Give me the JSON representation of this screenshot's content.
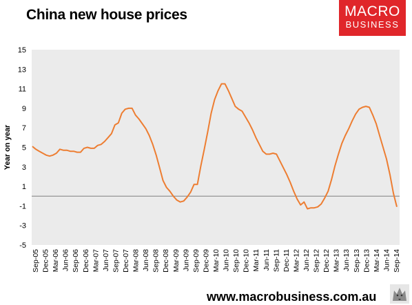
{
  "header": {
    "title": "China new house prices",
    "logo_line1": "MACRO",
    "logo_line2": "BUSINESS"
  },
  "footer": {
    "url": "www.macrobusiness.com.au"
  },
  "colors": {
    "line": "#ed7d31",
    "plot_bg": "#ebebeb",
    "brand_red": "#e0262a",
    "zero_line": "#808080"
  },
  "chart_data": {
    "type": "line",
    "title": "China new house prices",
    "xlabel": "",
    "ylabel": "Year on year",
    "ylim": [
      -5,
      15
    ],
    "yticks": [
      15,
      13,
      11,
      9,
      7,
      5,
      3,
      1,
      -1,
      -3,
      -5
    ],
    "xtick_labels": [
      "Sep-05",
      "Dec-05",
      "Mar-06",
      "Jun-06",
      "Sep-06",
      "Dec-06",
      "Mar-07",
      "Jun-07",
      "Sep-07",
      "Dec-07",
      "Mar-08",
      "Jun-08",
      "Sep-08",
      "Dec-08",
      "Mar-09",
      "Jun-09",
      "Sep-09",
      "Dec-09",
      "Mar-10",
      "Jun-10",
      "Sep-10",
      "Dec-10",
      "Mar-11",
      "Jun-11",
      "Sep-11",
      "Dec-11",
      "Mar-12",
      "Jun-12",
      "Sep-12",
      "Dec-12",
      "Mar-13",
      "Jun-13",
      "Sep-13",
      "Dec-13",
      "Mar-14",
      "Jun-14",
      "Sep-14"
    ],
    "grid": false,
    "series": [
      {
        "values": [
          5.1,
          4.8,
          4.6,
          4.4,
          4.2,
          4.1,
          4.2,
          4.4,
          4.8,
          4.7,
          4.7,
          4.6,
          4.6,
          4.5,
          4.5,
          4.9,
          5.0,
          4.9,
          4.9,
          5.2,
          5.3,
          5.6,
          6.0,
          6.4,
          7.3,
          7.5,
          8.5,
          8.9,
          9.0,
          9.0,
          8.3,
          7.9,
          7.4,
          6.9,
          6.2,
          5.3,
          4.2,
          2.9,
          1.6,
          0.9,
          0.5,
          0.0,
          -0.4,
          -0.6,
          -0.5,
          -0.1,
          0.4,
          1.2,
          1.2,
          3.1,
          4.8,
          6.6,
          8.5,
          9.9,
          10.8,
          11.5,
          11.5,
          10.8,
          10.0,
          9.2,
          8.9,
          8.7,
          8.1,
          7.5,
          6.8,
          6.0,
          5.3,
          4.6,
          4.3,
          4.3,
          4.4,
          4.3,
          3.6,
          2.9,
          2.2,
          1.4,
          0.5,
          -0.3,
          -0.9,
          -0.6,
          -1.3,
          -1.2,
          -1.2,
          -1.1,
          -0.8,
          -0.2,
          0.5,
          1.7,
          3.1,
          4.3,
          5.4,
          6.2,
          6.9,
          7.7,
          8.4,
          8.9,
          9.1,
          9.2,
          9.1,
          8.3,
          7.4,
          6.2,
          5.0,
          3.8,
          2.2,
          0.3,
          -1.1
        ]
      }
    ]
  }
}
